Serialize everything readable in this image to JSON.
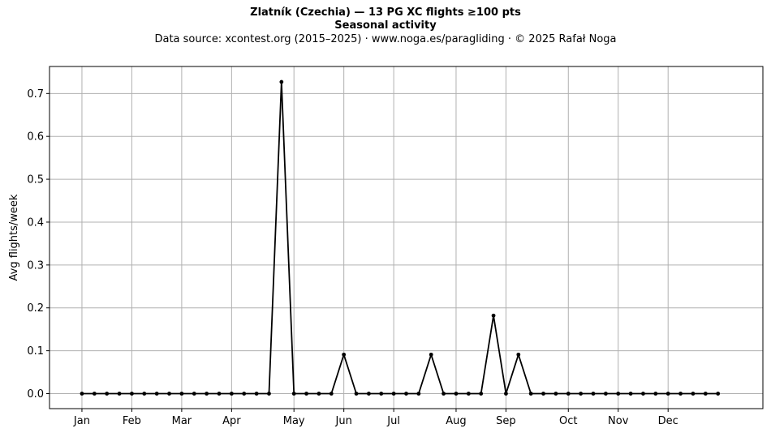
{
  "chart_data": {
    "type": "line",
    "title": "Zlatník (Czechia)  —  13 PG XC flights ≥100 pts",
    "title_line2": "Seasonal activity",
    "subtitle": "Data source: xcontest.org (2015–2025)  ·  www.noga.es/paragliding  ·  © 2025 Rafał Noga",
    "xlabel": "",
    "ylabel": "Avg flights/week",
    "grid": true,
    "xlim": [
      -2.6,
      54.6
    ],
    "ylim": [
      -0.035,
      0.763
    ],
    "yticks": [
      0.0,
      0.1,
      0.2,
      0.3,
      0.4,
      0.5,
      0.6,
      0.7
    ],
    "ytick_labels": [
      "0.0",
      "0.1",
      "0.2",
      "0.3",
      "0.4",
      "0.5",
      "0.6",
      "0.7"
    ],
    "xticks": [
      0,
      4,
      8,
      12,
      17,
      21,
      25,
      30,
      34,
      39,
      43,
      47
    ],
    "xtick_labels": [
      "Jan",
      "Feb",
      "Mar",
      "Apr",
      "May",
      "Jun",
      "Jul",
      "Aug",
      "Sep",
      "Oct",
      "Nov",
      "Dec"
    ],
    "series": [
      {
        "name": "",
        "color": "#000000",
        "x": [
          0,
          1,
          2,
          3,
          4,
          5,
          6,
          7,
          8,
          9,
          10,
          11,
          12,
          13,
          14,
          15,
          16,
          17,
          18,
          19,
          20,
          21,
          22,
          23,
          24,
          25,
          26,
          27,
          28,
          29,
          30,
          31,
          32,
          33,
          34,
          35,
          36,
          37,
          38,
          39,
          40,
          41,
          42,
          43,
          44,
          45,
          46,
          47,
          48,
          49,
          50,
          51
        ],
        "values": [
          0,
          0,
          0,
          0,
          0,
          0,
          0,
          0,
          0,
          0,
          0,
          0,
          0,
          0,
          0,
          0,
          0.727,
          0,
          0,
          0,
          0,
          0.091,
          0,
          0,
          0,
          0,
          0,
          0,
          0.091,
          0,
          0,
          0,
          0,
          0.182,
          0,
          0.091,
          0,
          0,
          0,
          0,
          0,
          0,
          0,
          0,
          0,
          0,
          0,
          0,
          0,
          0,
          0,
          0
        ]
      }
    ]
  }
}
